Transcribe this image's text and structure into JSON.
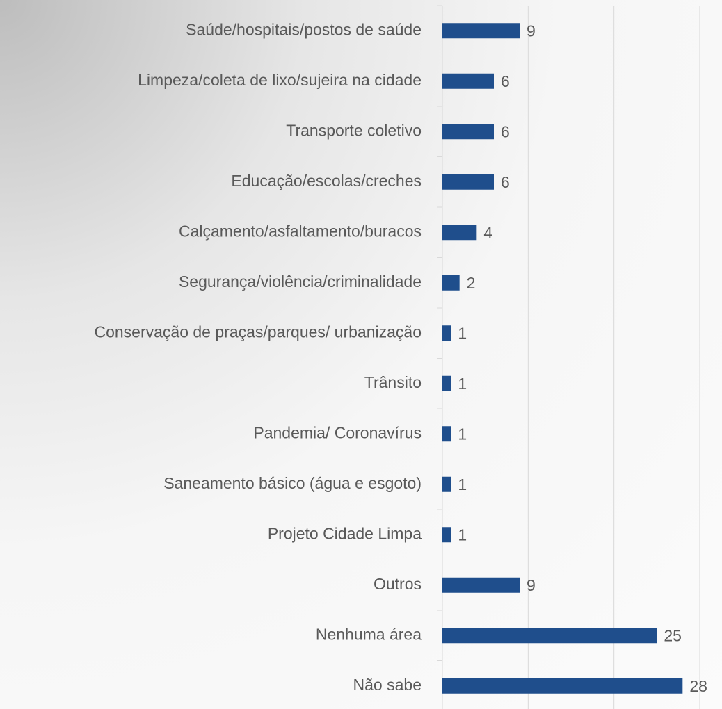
{
  "chart_data": {
    "type": "bar",
    "orientation": "horizontal",
    "categories": [
      "Saúde/hospitais/postos de saúde",
      "Limpeza/coleta de lixo/sujeira na cidade",
      "Transporte coletivo",
      "Educação/escolas/creches",
      "Calçamento/asfaltamento/buracos",
      "Segurança/violência/criminalidade",
      "Conservação de praças/parques/ urbanização",
      "Trânsito",
      "Pandemia/ Coronavírus",
      "Saneamento básico (água e esgoto)",
      "Projeto Cidade Limpa",
      "Outros",
      "Nenhuma área",
      "Não sabe"
    ],
    "values": [
      9,
      6,
      6,
      6,
      4,
      2,
      1,
      1,
      1,
      1,
      1,
      9,
      25,
      28
    ],
    "color": "#1f4e8c",
    "xlim": [
      0,
      30
    ],
    "xticks": [
      0,
      10,
      20,
      30
    ],
    "grid": true
  }
}
